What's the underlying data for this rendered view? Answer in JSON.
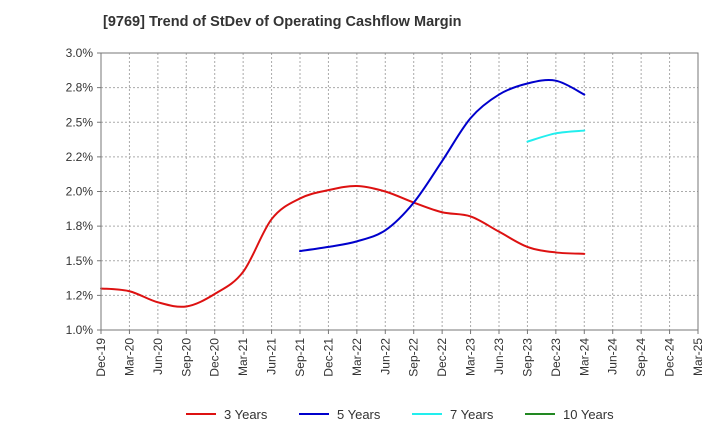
{
  "chart_data": {
    "type": "line",
    "title": "[9769]  Trend of StDev of Operating Cashflow Margin",
    "xlabel": "",
    "ylabel": "",
    "ylim": [
      1.0,
      3.0
    ],
    "yticks": [
      1.0,
      1.25,
      1.5,
      1.75,
      2.0,
      2.25,
      2.5,
      2.75,
      3.0
    ],
    "ytick_labels": [
      "1.0%",
      "1.2%",
      "1.5%",
      "1.8%",
      "2.0%",
      "2.2%",
      "2.5%",
      "2.8%",
      "3.0%"
    ],
    "categories": [
      "Dec-19",
      "Mar-20",
      "Jun-20",
      "Sep-20",
      "Dec-20",
      "Mar-21",
      "Jun-21",
      "Sep-21",
      "Dec-21",
      "Mar-22",
      "Jun-22",
      "Sep-22",
      "Dec-22",
      "Mar-23",
      "Jun-23",
      "Sep-23",
      "Dec-23",
      "Mar-24",
      "Jun-24",
      "Sep-24",
      "Dec-24",
      "Mar-25"
    ],
    "grid": true,
    "legend_position": "bottom",
    "series": [
      {
        "name": "3 Years",
        "color": "#dd1111",
        "values": [
          1.3,
          1.28,
          1.2,
          1.17,
          1.26,
          1.42,
          1.8,
          1.95,
          2.01,
          2.04,
          2.0,
          1.92,
          1.85,
          1.82,
          1.71,
          1.6,
          1.56,
          1.55,
          null,
          null,
          null,
          null
        ]
      },
      {
        "name": "5 Years",
        "color": "#0000cc",
        "values": [
          null,
          null,
          null,
          null,
          null,
          null,
          null,
          1.57,
          1.6,
          1.64,
          1.72,
          1.92,
          2.22,
          2.53,
          2.7,
          2.78,
          2.8,
          2.7,
          null,
          null,
          null,
          null
        ]
      },
      {
        "name": "7 Years",
        "color": "#22eeee",
        "values": [
          null,
          null,
          null,
          null,
          null,
          null,
          null,
          null,
          null,
          null,
          null,
          null,
          null,
          null,
          null,
          2.36,
          2.42,
          2.44,
          null,
          null,
          null,
          null
        ]
      },
      {
        "name": "10 Years",
        "color": "#228822",
        "values": [
          null,
          null,
          null,
          null,
          null,
          null,
          null,
          null,
          null,
          null,
          null,
          null,
          null,
          null,
          null,
          null,
          null,
          null,
          null,
          null,
          null,
          null
        ]
      }
    ]
  }
}
